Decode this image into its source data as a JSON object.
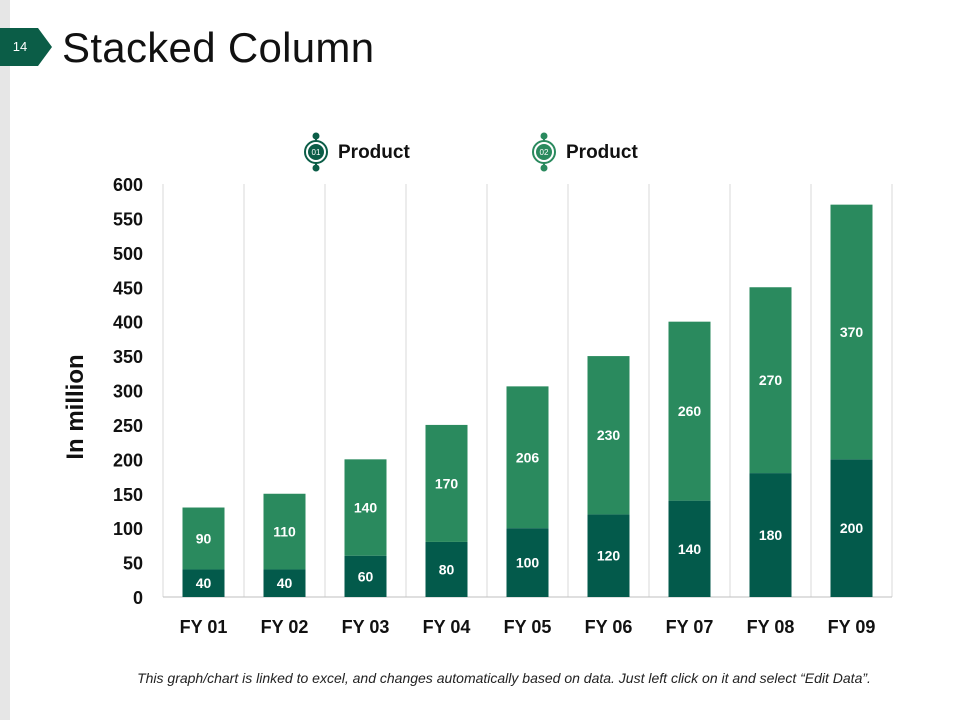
{
  "slide": {
    "page_number": "14",
    "title": "Stacked Column",
    "footnote": "This graph/chart is linked to excel, and changes automatically based on data. Just left click on it and select “Edit Data”."
  },
  "legend": [
    {
      "badge": "01",
      "label": "Product"
    },
    {
      "badge": "02",
      "label": "Product"
    }
  ],
  "colors": {
    "accent_dark": "#035a4b",
    "accent_light": "#2a8a5e",
    "grid": "#d9d9d9",
    "badge": "#0b5d47"
  },
  "chart_data": {
    "type": "bar",
    "stacked": true,
    "title": "",
    "xlabel": "",
    "ylabel": "In million",
    "ylim": [
      0,
      600
    ],
    "yticks": [
      0,
      50,
      100,
      150,
      200,
      250,
      300,
      350,
      400,
      450,
      500,
      550,
      600
    ],
    "categories": [
      "FY 01",
      "FY 02",
      "FY 03",
      "FY 04",
      "FY 05",
      "FY 06",
      "FY 07",
      "FY 08",
      "FY 09"
    ],
    "series": [
      {
        "name": "Product 01",
        "values": [
          40,
          40,
          60,
          80,
          100,
          120,
          140,
          180,
          200
        ]
      },
      {
        "name": "Product 02",
        "values": [
          90,
          110,
          140,
          170,
          206,
          230,
          260,
          270,
          370
        ]
      }
    ],
    "legend_position": "top"
  }
}
